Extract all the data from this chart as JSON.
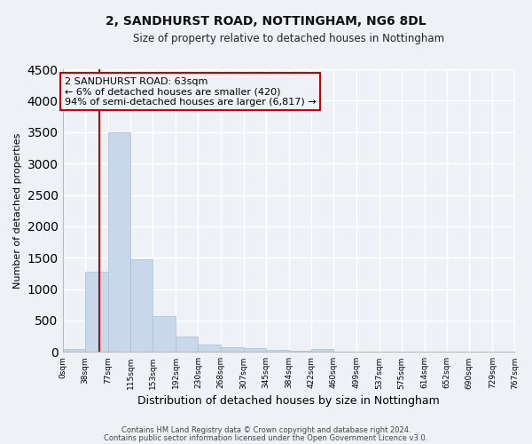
{
  "title": "2, SANDHURST ROAD, NOTTINGHAM, NG6 8DL",
  "subtitle": "Size of property relative to detached houses in Nottingham",
  "xlabel": "Distribution of detached houses by size in Nottingham",
  "ylabel": "Number of detached properties",
  "bar_color": "#c8d8ea",
  "bar_edge_color": "#a8bfd4",
  "bin_edges": [
    0,
    38,
    77,
    115,
    153,
    192,
    230,
    268,
    307,
    345,
    384,
    422,
    460,
    499,
    537,
    575,
    614,
    652,
    690,
    729,
    767
  ],
  "bar_heights": [
    50,
    1270,
    3500,
    1480,
    570,
    250,
    120,
    80,
    60,
    35,
    25,
    50,
    0,
    0,
    0,
    0,
    0,
    0,
    0,
    0
  ],
  "property_size": 63,
  "red_line_color": "#cc0000",
  "ylim": [
    0,
    4500
  ],
  "annotation_line1": "2 SANDHURST ROAD: 63sqm",
  "annotation_line2": "← 6% of detached houses are smaller (420)",
  "annotation_line3": "94% of semi-detached houses are larger (6,817) →",
  "background_color": "#eef2f7",
  "grid_color": "#ffffff",
  "footer_line1": "Contains HM Land Registry data © Crown copyright and database right 2024.",
  "footer_line2": "Contains public sector information licensed under the Open Government Licence v3.0."
}
